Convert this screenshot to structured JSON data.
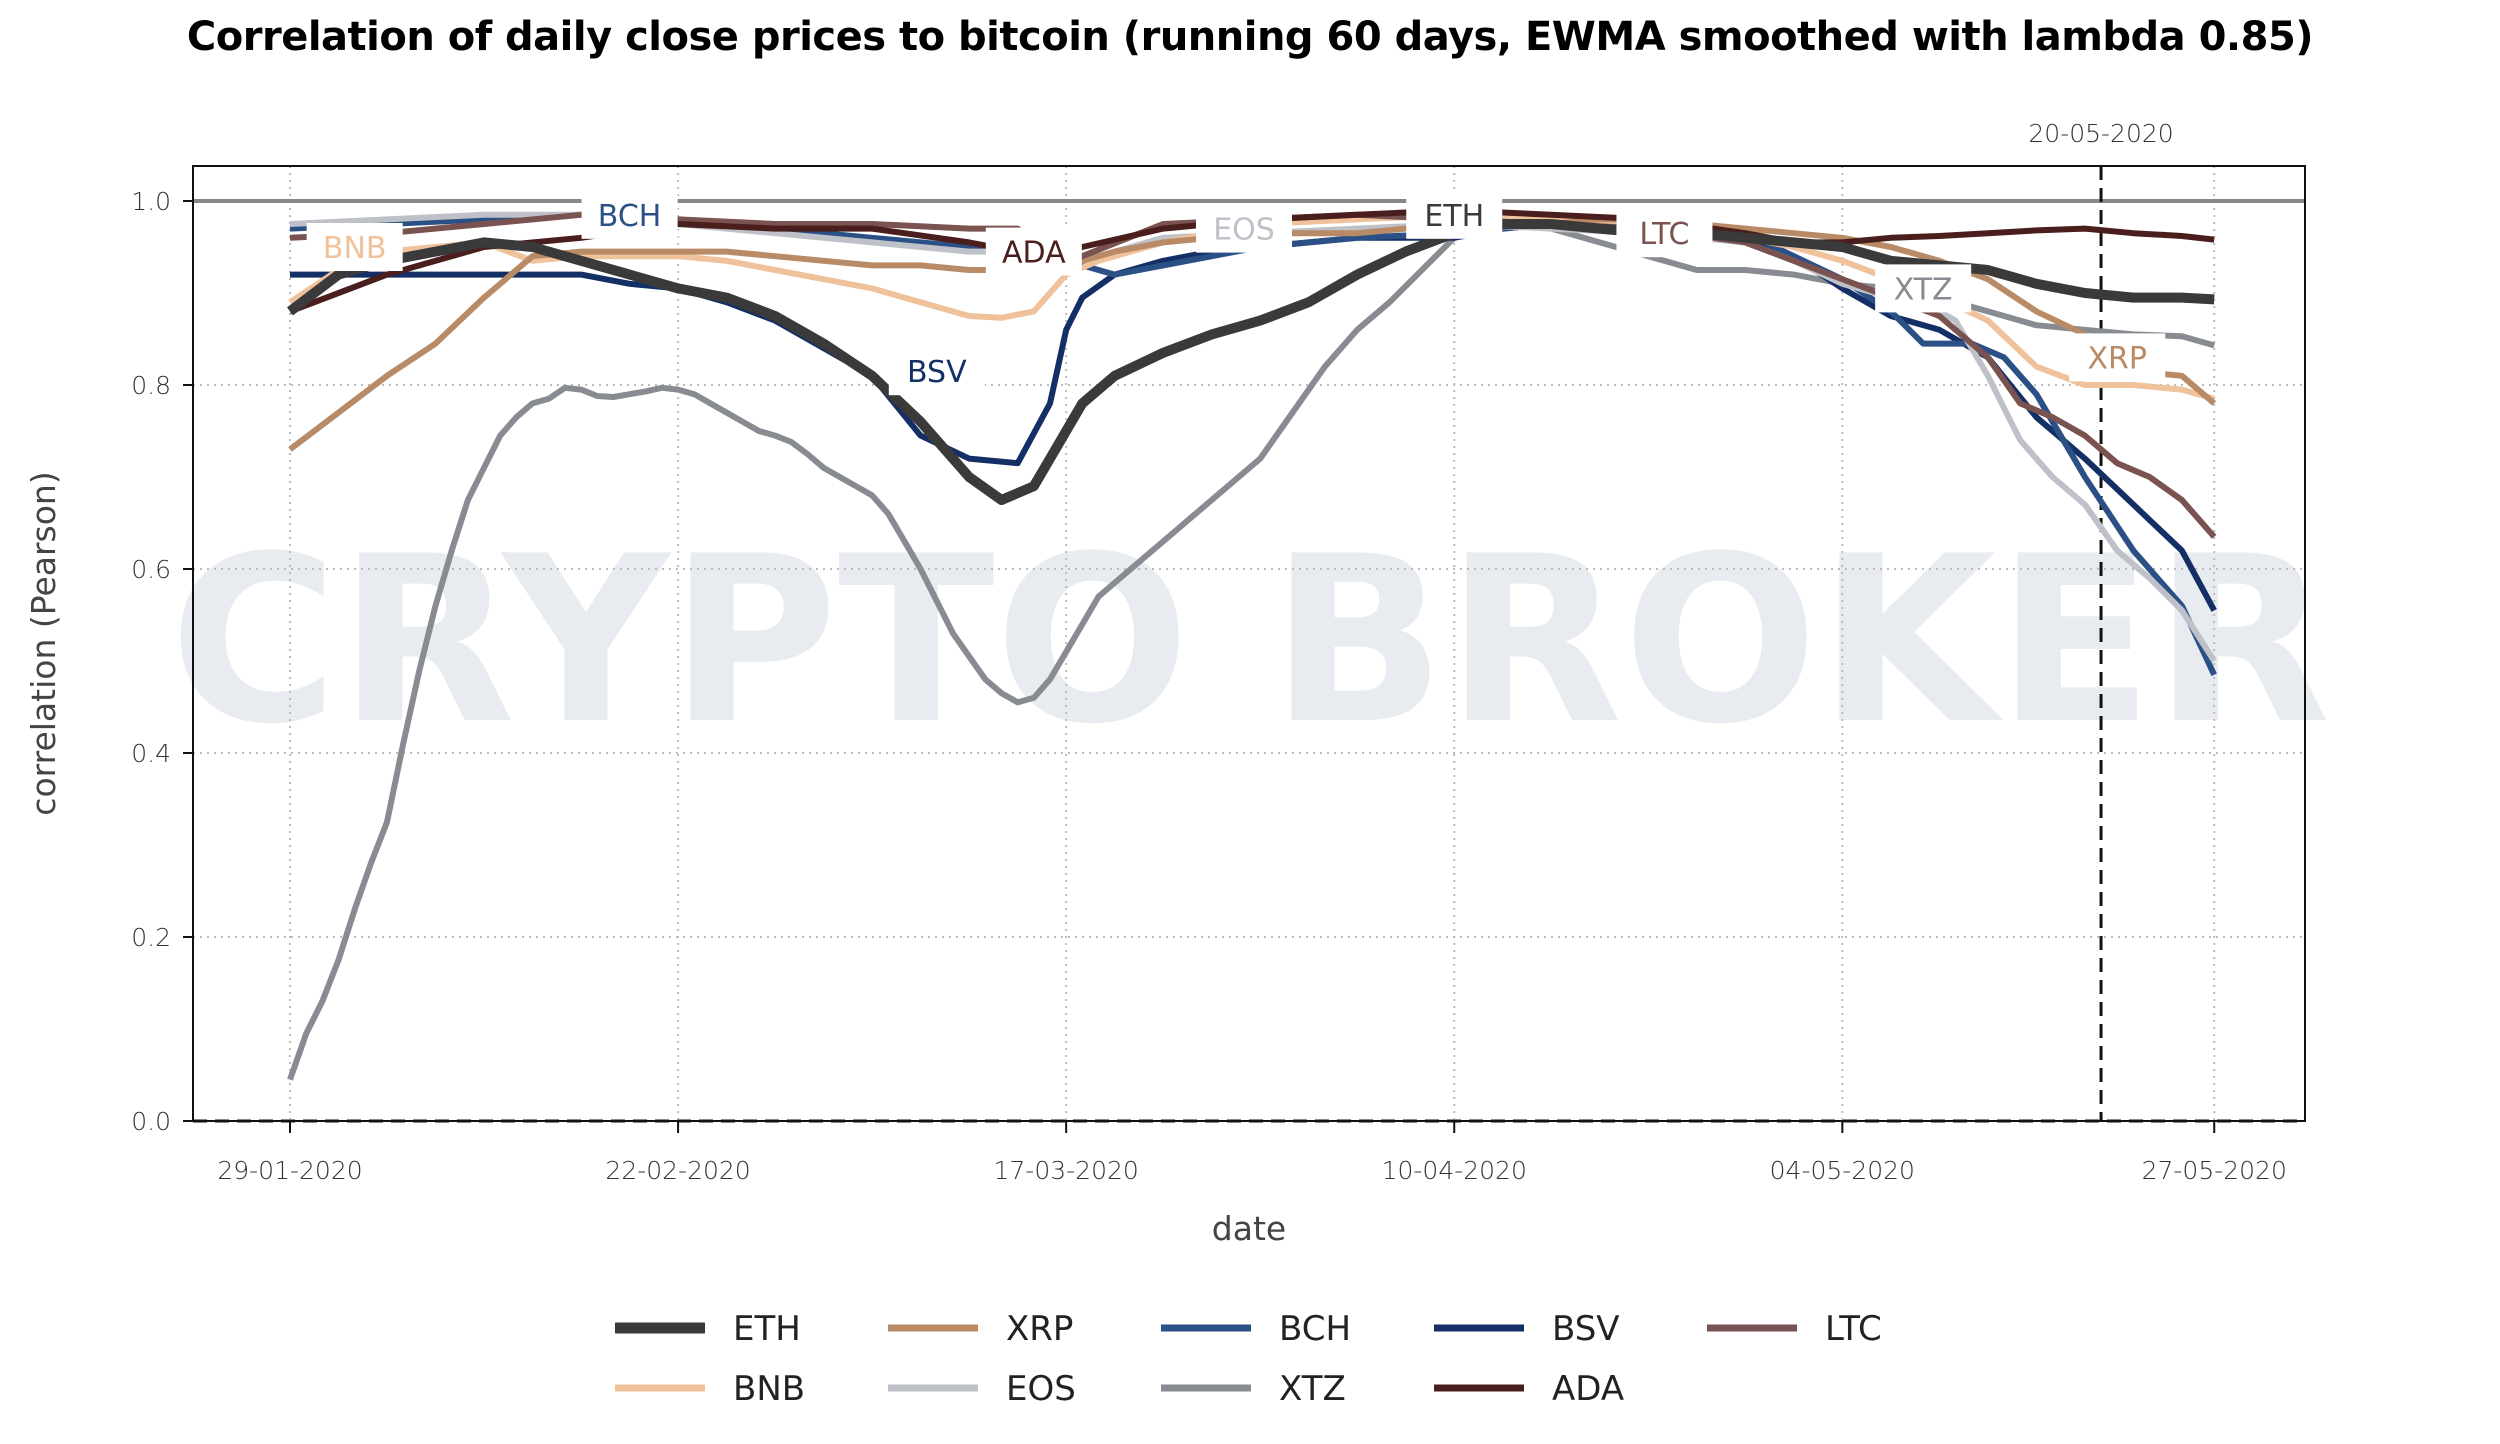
{
  "title": "Correlation of daily close prices to bitcoin (running 60 days, EWMA smoothed with lambda 0.85)",
  "watermark": "CRYPTO BROKER",
  "chart_data": {
    "type": "line",
    "title": "Correlation of daily close prices to bitcoin (running 60 days, EWMA smoothed with lambda 0.85)",
    "xlabel": "date",
    "ylabel": "correlation (Pearson)",
    "x_start_date": "29-01-2020",
    "x_end_date": "27-05-2020",
    "x_unit": "days since 29-01-2020",
    "xlim": [
      -4,
      124
    ],
    "ylim": [
      0.0,
      1.04
    ],
    "x_ticks": [
      {
        "day": 0,
        "label": "29-01-2020"
      },
      {
        "day": 24,
        "label": "22-02-2020"
      },
      {
        "day": 48,
        "label": "17-03-2020"
      },
      {
        "day": 72,
        "label": "10-04-2020"
      },
      {
        "day": 96,
        "label": "04-05-2020"
      },
      {
        "day": 119,
        "label": "27-05-2020"
      }
    ],
    "y_ticks": [
      0.0,
      0.2,
      0.4,
      0.6,
      0.8,
      1.0
    ],
    "y_tick_labels": [
      "0.0",
      "0.2",
      "0.4",
      "0.6",
      "0.8",
      "1.0"
    ],
    "grid": true,
    "reference_lines": [
      {
        "orientation": "horizontal",
        "value": 1.0,
        "style": "solid",
        "color": "#888888"
      },
      {
        "orientation": "horizontal",
        "value": 0.0,
        "style": "dashed",
        "color": "#888888"
      },
      {
        "orientation": "vertical",
        "day": 112,
        "label": "20-05-2020",
        "style": "dashed",
        "color": "#111111"
      }
    ],
    "legend_position": "bottom",
    "series": [
      {
        "name": "ETH",
        "color": "#3a3a3a",
        "label_day": 72,
        "label_value": 0.985,
        "x": [
          0,
          3,
          6,
          9,
          12,
          15,
          18,
          21,
          24,
          27,
          30,
          33,
          36,
          39,
          42,
          44,
          46,
          47,
          49,
          51,
          54,
          57,
          60,
          63,
          66,
          69,
          72,
          75,
          78,
          81,
          84,
          87,
          90,
          93,
          96,
          99,
          102,
          105,
          108,
          111,
          114,
          117,
          119
        ],
        "y": [
          0.88,
          0.92,
          0.935,
          0.945,
          0.955,
          0.95,
          0.935,
          0.92,
          0.905,
          0.895,
          0.875,
          0.845,
          0.81,
          0.76,
          0.7,
          0.675,
          0.69,
          0.72,
          0.78,
          0.81,
          0.835,
          0.855,
          0.87,
          0.89,
          0.92,
          0.945,
          0.965,
          0.975,
          0.975,
          0.97,
          0.965,
          0.965,
          0.96,
          0.955,
          0.95,
          0.935,
          0.93,
          0.925,
          0.91,
          0.9,
          0.895,
          0.895,
          0.893
        ]
      },
      {
        "name": "XRP",
        "color": "#b88b66",
        "label_day": 113,
        "label_value": 0.83,
        "x": [
          0,
          3,
          6,
          9,
          12,
          15,
          18,
          21,
          24,
          27,
          30,
          33,
          36,
          39,
          42,
          45,
          47,
          49,
          51,
          54,
          57,
          60,
          63,
          66,
          69,
          72,
          75,
          78,
          81,
          84,
          87,
          90,
          93,
          96,
          99,
          102,
          105,
          108,
          111,
          114,
          117,
          119
        ],
        "y": [
          0.73,
          0.77,
          0.81,
          0.845,
          0.895,
          0.94,
          0.945,
          0.945,
          0.945,
          0.945,
          0.94,
          0.935,
          0.93,
          0.93,
          0.925,
          0.925,
          0.925,
          0.935,
          0.945,
          0.955,
          0.96,
          0.965,
          0.965,
          0.965,
          0.97,
          0.975,
          0.975,
          0.975,
          0.98,
          0.98,
          0.975,
          0.97,
          0.965,
          0.96,
          0.95,
          0.935,
          0.915,
          0.88,
          0.855,
          0.815,
          0.81,
          0.78
        ]
      },
      {
        "name": "BCH",
        "color": "#2a5085",
        "label_day": 21,
        "label_value": 0.985,
        "x": [
          0,
          6,
          12,
          18,
          24,
          30,
          36,
          42,
          45,
          47,
          49,
          51,
          54,
          60,
          66,
          72,
          78,
          84,
          90,
          93,
          96,
          99,
          101,
          104,
          106,
          108,
          111,
          114,
          117,
          119
        ],
        "y": [
          0.97,
          0.975,
          0.98,
          0.985,
          0.98,
          0.97,
          0.96,
          0.95,
          0.945,
          0.935,
          0.93,
          0.92,
          0.93,
          0.95,
          0.96,
          0.965,
          0.975,
          0.975,
          0.965,
          0.94,
          0.915,
          0.88,
          0.845,
          0.845,
          0.83,
          0.79,
          0.7,
          0.62,
          0.56,
          0.485
        ]
      },
      {
        "name": "BSV",
        "color": "#142f66",
        "label_day": 40,
        "label_value": 0.815,
        "x": [
          0,
          6,
          12,
          18,
          21,
          24,
          27,
          30,
          33,
          36,
          39,
          42,
          45,
          47,
          48,
          49,
          51,
          54,
          57,
          60,
          63,
          66,
          69,
          72,
          75,
          78,
          84,
          90,
          93,
          96,
          99,
          102,
          105,
          108,
          111,
          114,
          117,
          119
        ],
        "y": [
          0.92,
          0.92,
          0.92,
          0.92,
          0.91,
          0.905,
          0.89,
          0.87,
          0.84,
          0.81,
          0.745,
          0.72,
          0.715,
          0.78,
          0.86,
          0.895,
          0.92,
          0.935,
          0.945,
          0.95,
          0.955,
          0.96,
          0.96,
          0.96,
          0.97,
          0.975,
          0.975,
          0.96,
          0.94,
          0.905,
          0.875,
          0.86,
          0.83,
          0.765,
          0.72,
          0.67,
          0.62,
          0.555
        ]
      },
      {
        "name": "LTC",
        "color": "#7a5250",
        "label_day": 85,
        "label_value": 0.965,
        "x": [
          0,
          6,
          12,
          18,
          24,
          30,
          36,
          42,
          45,
          47,
          49,
          54,
          60,
          66,
          72,
          78,
          84,
          90,
          93,
          96,
          99,
          102,
          105,
          107,
          109,
          111,
          113,
          115,
          117,
          119
        ],
        "y": [
          0.96,
          0.965,
          0.975,
          0.985,
          0.98,
          0.975,
          0.975,
          0.97,
          0.97,
          0.945,
          0.94,
          0.975,
          0.98,
          0.985,
          0.98,
          0.975,
          0.97,
          0.955,
          0.935,
          0.915,
          0.895,
          0.875,
          0.83,
          0.78,
          0.765,
          0.745,
          0.715,
          0.7,
          0.675,
          0.635
        ]
      },
      {
        "name": "BNB",
        "color": "#efc29c",
        "label_day": 4,
        "label_value": 0.95,
        "x": [
          0,
          3,
          6,
          9,
          12,
          15,
          18,
          21,
          24,
          27,
          30,
          33,
          36,
          39,
          42,
          44,
          46,
          48,
          50,
          52,
          54,
          57,
          60,
          66,
          72,
          78,
          84,
          90,
          93,
          96,
          99,
          102,
          105,
          108,
          111,
          114,
          117,
          119
        ],
        "y": [
          0.89,
          0.925,
          0.945,
          0.95,
          0.955,
          0.935,
          0.94,
          0.94,
          0.94,
          0.935,
          0.925,
          0.915,
          0.905,
          0.89,
          0.875,
          0.873,
          0.88,
          0.92,
          0.935,
          0.945,
          0.955,
          0.965,
          0.975,
          0.98,
          0.985,
          0.98,
          0.97,
          0.96,
          0.95,
          0.935,
          0.915,
          0.895,
          0.87,
          0.82,
          0.8,
          0.8,
          0.795,
          0.785
        ]
      },
      {
        "name": "EOS",
        "color": "#bfc1c8",
        "label_day": 59,
        "label_value": 0.97,
        "x": [
          0,
          6,
          12,
          18,
          24,
          30,
          36,
          42,
          45,
          47,
          49,
          54,
          60,
          66,
          72,
          78,
          84,
          90,
          93,
          96,
          99,
          101,
          103,
          105,
          107,
          109,
          111,
          113,
          115,
          117,
          119
        ],
        "y": [
          0.975,
          0.98,
          0.985,
          0.985,
          0.975,
          0.965,
          0.955,
          0.945,
          0.945,
          0.93,
          0.935,
          0.96,
          0.965,
          0.97,
          0.975,
          0.97,
          0.965,
          0.955,
          0.935,
          0.91,
          0.895,
          0.89,
          0.87,
          0.81,
          0.74,
          0.7,
          0.67,
          0.62,
          0.59,
          0.555,
          0.5
        ]
      },
      {
        "name": "XTZ",
        "color": "#888b91",
        "label_day": 101,
        "label_value": 0.905,
        "x": [
          0,
          1,
          2,
          3,
          4,
          5,
          6,
          7,
          8,
          9,
          10,
          11,
          12,
          13,
          14,
          15,
          16,
          17,
          18,
          19,
          20,
          21,
          22,
          23,
          24,
          25,
          26,
          27,
          28,
          29,
          30,
          31,
          32,
          33,
          34,
          35,
          36,
          37,
          38,
          39,
          40,
          41,
          42,
          43,
          44,
          45,
          46,
          47,
          48,
          50,
          52,
          54,
          56,
          58,
          60,
          62,
          64,
          66,
          68,
          70,
          72,
          75,
          78,
          81,
          84,
          87,
          90,
          93,
          96,
          99,
          102,
          105,
          108,
          111,
          114,
          117,
          119
        ],
        "y": [
          0.045,
          0.095,
          0.13,
          0.175,
          0.23,
          0.28,
          0.325,
          0.41,
          0.49,
          0.56,
          0.62,
          0.675,
          0.71,
          0.745,
          0.765,
          0.78,
          0.785,
          0.797,
          0.795,
          0.788,
          0.787,
          0.79,
          0.793,
          0.797,
          0.795,
          0.79,
          0.78,
          0.77,
          0.76,
          0.75,
          0.745,
          0.738,
          0.725,
          0.71,
          0.7,
          0.69,
          0.68,
          0.66,
          0.63,
          0.6,
          0.565,
          0.53,
          0.505,
          0.48,
          0.465,
          0.455,
          0.46,
          0.48,
          0.51,
          0.57,
          0.6,
          0.63,
          0.66,
          0.69,
          0.72,
          0.77,
          0.82,
          0.86,
          0.89,
          0.925,
          0.96,
          0.975,
          0.97,
          0.955,
          0.94,
          0.925,
          0.925,
          0.92,
          0.91,
          0.905,
          0.895,
          0.88,
          0.865,
          0.86,
          0.855,
          0.853,
          0.843
        ]
      },
      {
        "name": "ADA",
        "color": "#4a1e1c",
        "label_day": 46,
        "label_value": 0.945,
        "x": [
          0,
          6,
          12,
          18,
          24,
          30,
          36,
          42,
          45,
          47,
          49,
          54,
          60,
          66,
          72,
          78,
          84,
          90,
          93,
          96,
          99,
          102,
          105,
          108,
          111,
          114,
          117,
          119
        ],
        "y": [
          0.88,
          0.92,
          0.95,
          0.96,
          0.975,
          0.97,
          0.97,
          0.955,
          0.945,
          0.935,
          0.95,
          0.97,
          0.98,
          0.985,
          0.99,
          0.985,
          0.98,
          0.965,
          0.955,
          0.955,
          0.96,
          0.962,
          0.965,
          0.968,
          0.97,
          0.965,
          0.962,
          0.958
        ]
      }
    ]
  }
}
